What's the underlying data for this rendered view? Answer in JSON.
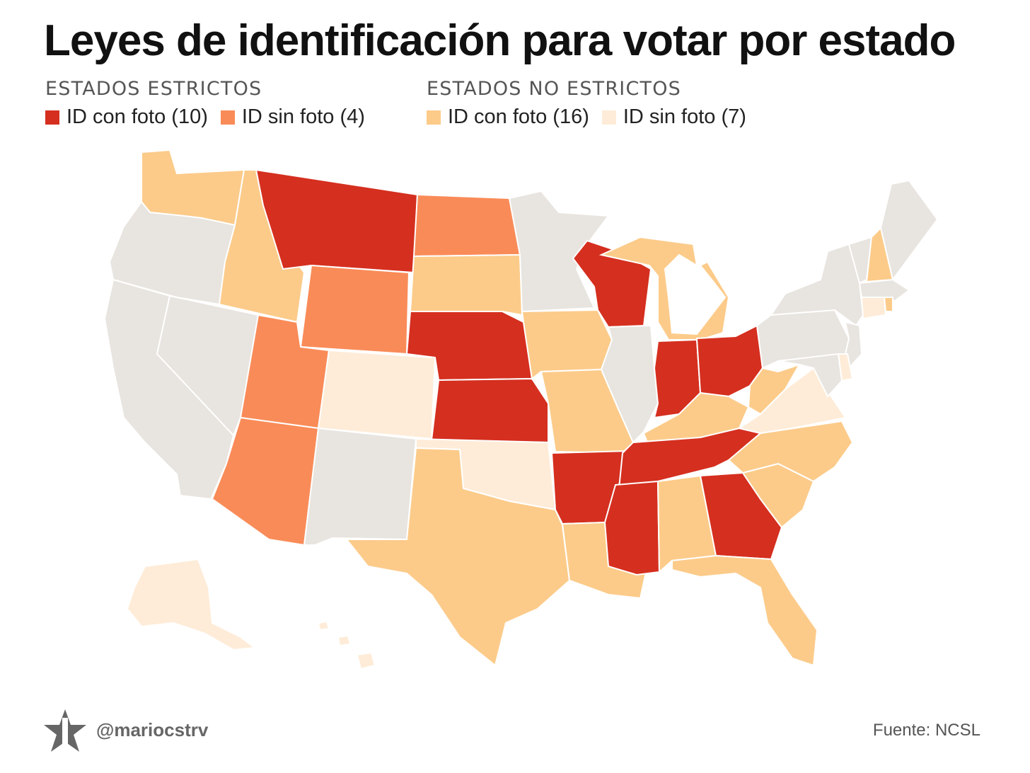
{
  "title": "Leyes de identificación para votar por estado",
  "legend": {
    "strict": {
      "heading": "ESTADOS ESTRICTOS",
      "items": [
        {
          "label": "ID con foto (10)",
          "color": "#d52f1f"
        },
        {
          "label": "ID sin foto (4)",
          "color": "#f98b58"
        }
      ]
    },
    "nonstrict": {
      "heading": "ESTADOS NO ESTRICTOS",
      "items": [
        {
          "label": "ID con foto (16)",
          "color": "#fccb8a"
        },
        {
          "label": "ID sin foto (7)",
          "color": "#feecd8"
        }
      ]
    }
  },
  "no_law_color": "#e8e4df",
  "categories": {
    "strict_photo": [
      "MT",
      "WI",
      "NE",
      "KS",
      "IN",
      "OH",
      "AR",
      "TN",
      "MS",
      "GA"
    ],
    "strict_nophoto": [
      "ND",
      "WY",
      "UT",
      "AZ"
    ],
    "nonstrict_photo": [
      "WA",
      "ID",
      "SD",
      "IA",
      "MO",
      "TX",
      "LA",
      "AL",
      "FL",
      "SC",
      "NC",
      "KY",
      "WV",
      "MI",
      "NH",
      "RI"
    ],
    "nonstrict_nophoto": [
      "CO",
      "OK",
      "VA",
      "AK",
      "HI",
      "CT",
      "DE"
    ],
    "no_law": [
      "OR",
      "CA",
      "NV",
      "NM",
      "MN",
      "IL",
      "PA",
      "NY",
      "VT",
      "ME",
      "MA",
      "NJ",
      "MD"
    ]
  },
  "footer": {
    "handle": "@mariocstrv",
    "logo_icon": "star-logo-icon",
    "source": "Fuente: NCSL"
  }
}
